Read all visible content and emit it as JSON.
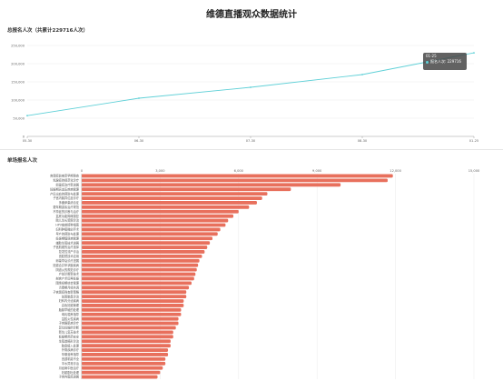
{
  "page": {
    "title": "维德直播观众数据统计"
  },
  "total_chart": {
    "heading": "总报名人次（共累计229716人次）",
    "tooltip": {
      "date": "01-25",
      "series": "报名人次",
      "value": "229716"
    },
    "chart_data": {
      "type": "line",
      "x": [
        "05-30",
        "06-30",
        "07-30",
        "08-30",
        "01-25"
      ],
      "y": [
        57000,
        105000,
        135000,
        170000,
        229716
      ],
      "xticks": [
        "05-30",
        "06-30",
        "07-30",
        "08-30",
        "01-25"
      ],
      "yticks": [
        "0",
        "50,000",
        "100,000",
        "150,000",
        "200,000",
        "250,000"
      ],
      "ylim": [
        0,
        250000
      ],
      "line_color": "#5fd0d7",
      "grid": true
    }
  },
  "single_chart": {
    "heading": "单场报名人次",
    "chart_data": {
      "type": "bar",
      "orientation": "horizontal",
      "categories": [
        "宫颈癌前病变早期筛查",
        "乳腺癌的规范化诊疗",
        "卵巢癌治疗新进展",
        "妊娠期高血压疾病管理",
        "产后出血的预防与处理",
        "子宫内膜异位症诊疗",
        "多囊卵巢综合征",
        "更年期激素治疗规范",
        "不孕症的诊断与治疗",
        "盆底功能障碍康复",
        "胎儿生长受限诊治",
        "HPV疫苗接种指南",
        "妇科肿瘤微创手术",
        "早产的预防与处理",
        "妊娠期糖尿病管理",
        "辅助生殖技术进展",
        "子宫肌瘤的治疗选择",
        "复发性流产诊治",
        "宫腔镜技术应用",
        "卵巢早衰诊疗进展",
        "妊娠合并甲状腺疾病",
        "阴道炎的规范诊疗",
        "产前诊断新技术",
        "剖宫产术后再妊娠",
        "围绝经期综合管理",
        "青春期月经失调",
        "子宫颈癌筛查新策略",
        "前置胎盘诊治",
        "妇科内分泌疾病",
        "高危妊娠管理",
        "胎膜早破的处理",
        "母乳喂养指导",
        "盆腔炎性疾病",
        "子宫腺肌病诊疗",
        "异位妊娠的诊断",
        "新生儿复苏技术",
        "妊娠期用药安全",
        "生殖道畸形诊治",
        "胎盘植入处理",
        "外阴疾病诊疗",
        "孕期营养指导",
        "宫颈机能不全",
        "羊水异常诊治",
        "月经病中医治疗",
        "妊娠剧吐处理",
        "子宫内膜癌进展"
      ],
      "values": [
        11900,
        11700,
        9900,
        8000,
        7100,
        6900,
        6700,
        6400,
        6000,
        5800,
        5600,
        5500,
        5300,
        5200,
        5000,
        4900,
        4800,
        4700,
        4600,
        4500,
        4450,
        4400,
        4350,
        4300,
        4200,
        4100,
        4000,
        4000,
        3900,
        3900,
        3800,
        3800,
        3700,
        3700,
        3600,
        3500,
        3500,
        3400,
        3400,
        3300,
        3300,
        3200,
        3200,
        3100,
        3000,
        2900
      ],
      "xticks": [
        "0",
        "3,000",
        "6,000",
        "9,000",
        "12,000",
        "15,000"
      ],
      "xlim": [
        0,
        15000
      ],
      "bar_color": "#e8705d",
      "grid": true
    }
  }
}
